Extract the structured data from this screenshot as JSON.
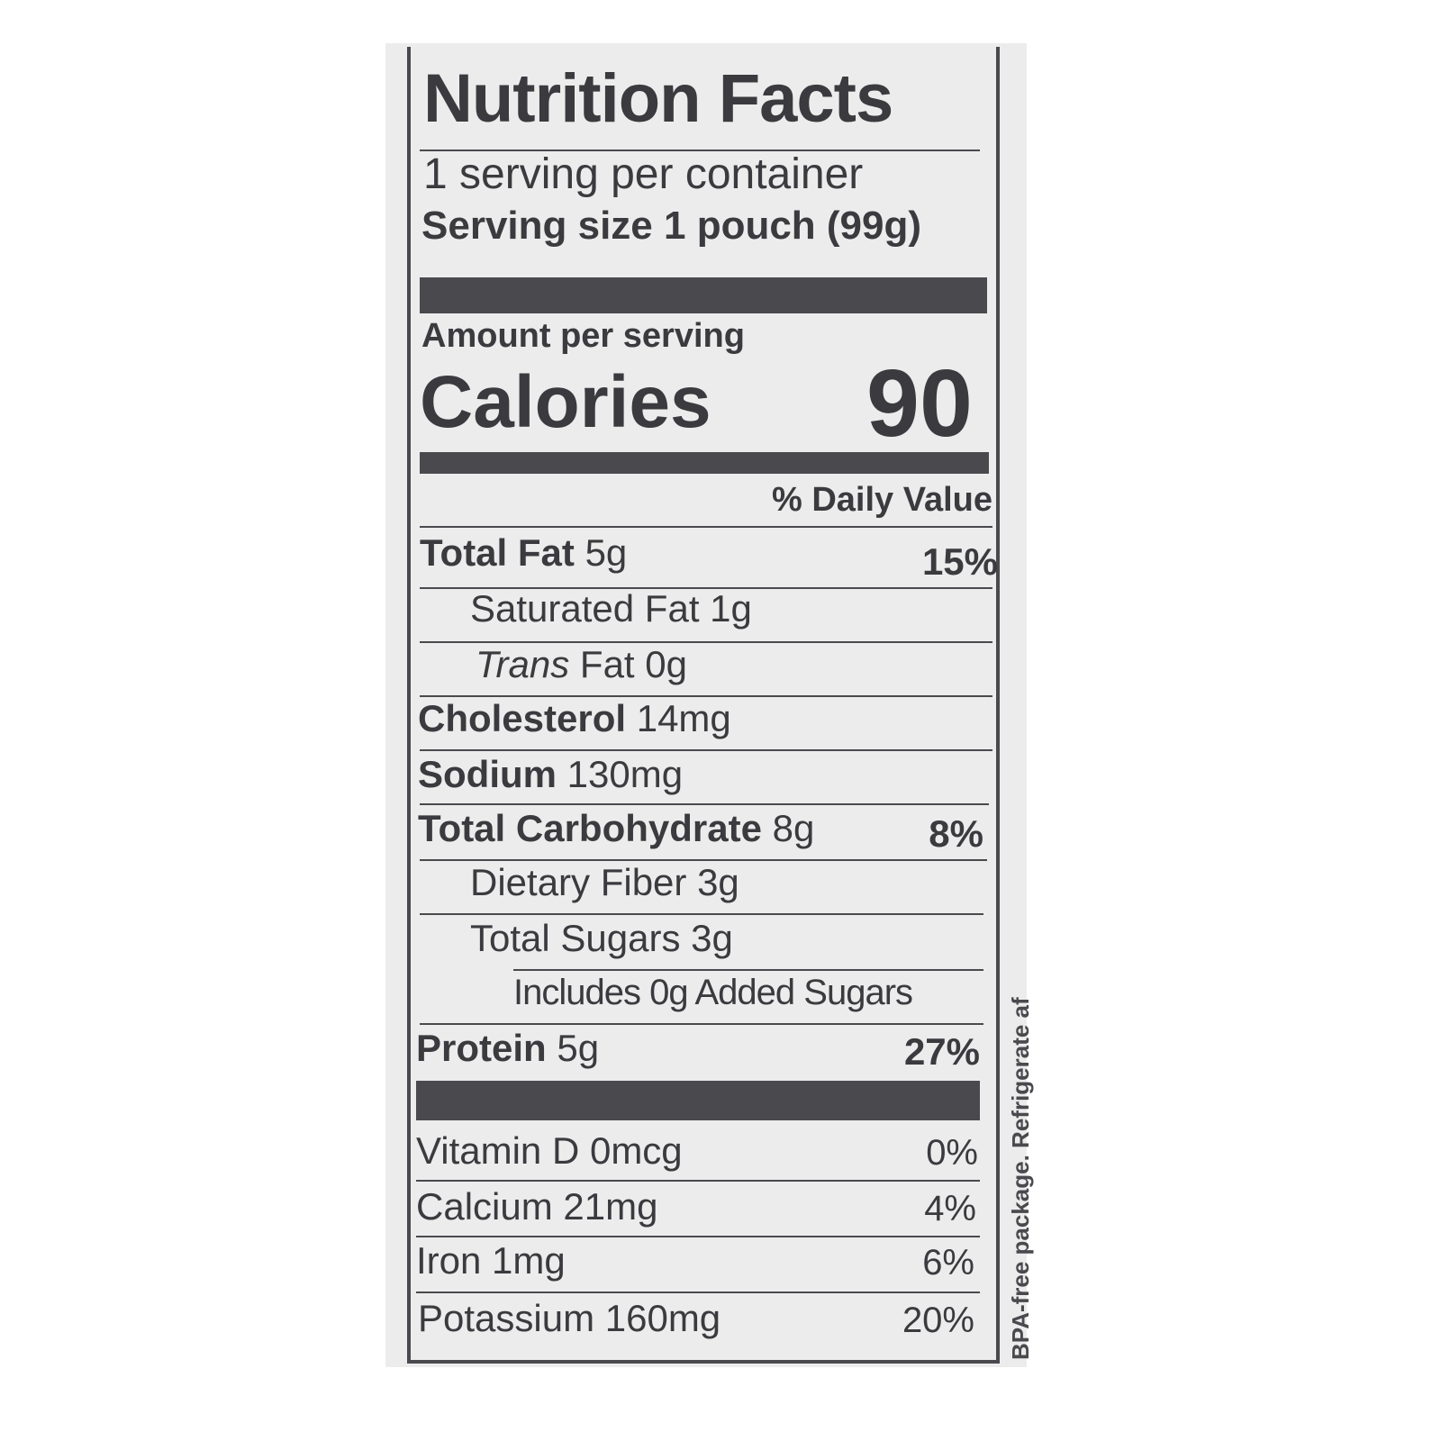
{
  "title": "Nutrition Facts",
  "servings_per_container": "1 serving per container",
  "serving_size": "Serving size 1 pouch (99g)",
  "amount_per_serving": "Amount per serving",
  "calories_label": "Calories",
  "calories_value": "90",
  "daily_value_header": "% Daily Value",
  "nutrients": [
    {
      "name": "Total Fat",
      "amount": "5g",
      "dv": "15%"
    },
    {
      "name": "Saturated Fat",
      "amount": "1g",
      "dv": ""
    },
    {
      "name": "Trans",
      "amount": "Fat 0g",
      "dv": ""
    },
    {
      "name": "Cholesterol",
      "amount": "14mg",
      "dv": ""
    },
    {
      "name": "Sodium",
      "amount": "130mg",
      "dv": ""
    },
    {
      "name": "Total Carbohydrate",
      "amount": "8g",
      "dv": "8%"
    },
    {
      "name": "Dietary Fiber",
      "amount": "3g",
      "dv": ""
    },
    {
      "name": "Total Sugars",
      "amount": "3g",
      "dv": ""
    },
    {
      "name": "Includes 0g Added Sugars",
      "amount": "",
      "dv": ""
    },
    {
      "name": "Protein",
      "amount": "5g",
      "dv": "27%"
    }
  ],
  "vitamins": [
    {
      "name": "Vitamin D 0mcg",
      "dv": "0%"
    },
    {
      "name": "Calcium 21mg",
      "dv": "4%"
    },
    {
      "name": "Iron 1mg",
      "dv": "6%"
    },
    {
      "name": "Potassium 160mg",
      "dv": "20%"
    }
  ],
  "side_text": "BPA-free package. Refrigerate af"
}
